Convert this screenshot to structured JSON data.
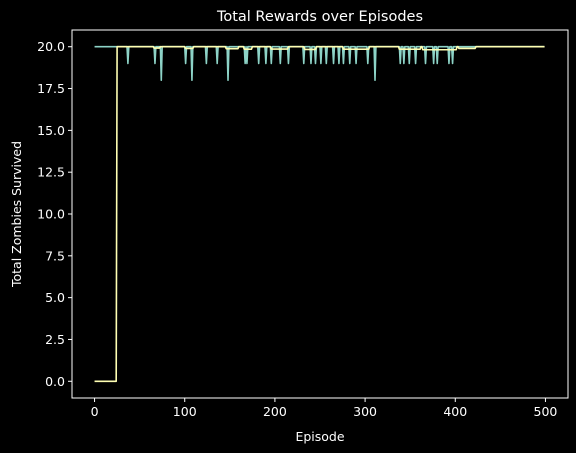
{
  "chart_data": {
    "type": "line",
    "title": "Total Rewards over Episodes",
    "xlabel": "Episode",
    "ylabel": "Total Zombies Survived",
    "xlim": [
      -25,
      525
    ],
    "ylim": [
      -1,
      21
    ],
    "xticks": [
      0,
      100,
      200,
      300,
      400,
      500
    ],
    "yticks": [
      0.0,
      2.5,
      5.0,
      7.5,
      10.0,
      12.5,
      15.0,
      17.5,
      20.0
    ],
    "ytick_labels": [
      "0.0",
      "2.5",
      "5.0",
      "7.5",
      "10.0",
      "12.5",
      "15.0",
      "17.5",
      "20.0"
    ],
    "grid": false,
    "background": "#000000",
    "series": [
      {
        "color": "#8dd3c7",
        "base_value": 20,
        "x_max": 499,
        "dips": [
          [
            37,
            19
          ],
          [
            67,
            19
          ],
          [
            74,
            18
          ],
          [
            101,
            19
          ],
          [
            108,
            18
          ],
          [
            124,
            19
          ],
          [
            136,
            19
          ],
          [
            148,
            18
          ],
          [
            167,
            19
          ],
          [
            169,
            19
          ],
          [
            182,
            19
          ],
          [
            190,
            19
          ],
          [
            196,
            19
          ],
          [
            206,
            19
          ],
          [
            215,
            19
          ],
          [
            232,
            19
          ],
          [
            240,
            19
          ],
          [
            245,
            19
          ],
          [
            251,
            19
          ],
          [
            257,
            19
          ],
          [
            265,
            19
          ],
          [
            271,
            19
          ],
          [
            276,
            19
          ],
          [
            283,
            19
          ],
          [
            290,
            19
          ],
          [
            303,
            19
          ],
          [
            311,
            18
          ],
          [
            339,
            19
          ],
          [
            343,
            19
          ],
          [
            349,
            19
          ],
          [
            356,
            19
          ],
          [
            367,
            19
          ],
          [
            376,
            19
          ],
          [
            380,
            19
          ],
          [
            393,
            19
          ],
          [
            397,
            19
          ]
        ]
      },
      {
        "color": "#ffffb3",
        "points": [
          [
            0,
            0
          ],
          [
            24,
            0
          ],
          [
            25,
            20
          ],
          [
            499,
            20
          ]
        ],
        "minor_dips": [
          [
            [
              65,
              73
            ],
            19.92
          ],
          [
            [
              100,
              110
            ],
            19.9
          ],
          [
            [
              145,
              160
            ],
            19.88
          ],
          [
            [
              165,
              175
            ],
            19.85
          ],
          [
            [
              195,
              215
            ],
            19.86
          ],
          [
            [
              232,
              246
            ],
            19.84
          ],
          [
            [
              275,
              305
            ],
            19.85
          ],
          [
            [
              337,
              362
            ],
            19.85
          ],
          [
            [
              363,
              402
            ],
            19.82
          ],
          [
            [
              403,
              423
            ],
            19.9
          ]
        ]
      }
    ]
  }
}
